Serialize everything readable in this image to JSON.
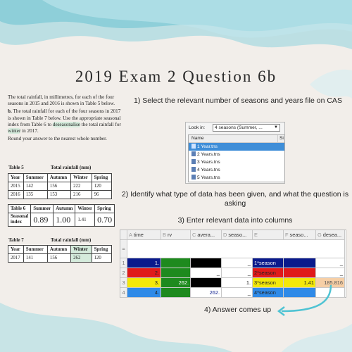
{
  "title": "2019 Exam 2 Question 6b",
  "question": {
    "intro": "The total rainfall, in millimetres, for each of the four seasons in 2015 and 2016 is shown in Table 5 below.",
    "part_label": "b.",
    "part_a": "The total rainfall for each of the four seasons in 2017 is shown in Table 7 below. Use the appropriate seasonal index from Table 6 to",
    "part_highlight_1": "deseasonalise",
    "part_b": "the total rainfall for",
    "part_highlight_2": "winter",
    "part_c": "in 2017.",
    "round_note": "Round your answer to the nearest whole number."
  },
  "table5": {
    "label": "Table 5",
    "caption": "Total rainfall (mm)",
    "headers": [
      "Year",
      "Summer",
      "Autumn",
      "Winter",
      "Spring"
    ],
    "rows": [
      [
        "2015",
        "142",
        "156",
        "222",
        "120"
      ],
      [
        "2016",
        "135",
        "153",
        "216",
        "96"
      ]
    ]
  },
  "table6": {
    "headers": [
      "Table 6",
      "Summer",
      "Autumn",
      "Winter",
      "Spring"
    ],
    "row_label": "Seasonal index",
    "values": [
      "0.89",
      "1.00",
      "1.41",
      "0.70"
    ]
  },
  "table7": {
    "label": "Table 7",
    "caption": "Total rainfall (mm)",
    "headers": [
      "Year",
      "Summer",
      "Autumn",
      "Winter",
      "Spring"
    ],
    "row": [
      "2017",
      "141",
      "156",
      "262",
      "120"
    ]
  },
  "steps": {
    "s1": "1) Select the relevant number of seasons and years file on CAS",
    "s2": "2) Identify what type of data has been given, and what the question is asking",
    "s3": "3) Enter relevant data into columns",
    "s4": "4) Answer comes up"
  },
  "file_dialog": {
    "look_in": "Look in:",
    "combo_value": "4 seasons (Summer, ...",
    "col_name": "Name",
    "col_size": "Si",
    "files": [
      "1 Year.tns",
      "2 Years.tns",
      "3 Years.tns",
      "4 Years.tns",
      "5 Years.tns"
    ]
  },
  "sheet": {
    "columns": [
      {
        "letter": "A",
        "name": "time"
      },
      {
        "letter": "B",
        "name": "rv"
      },
      {
        "letter": "C",
        "name": "avera..."
      },
      {
        "letter": "D",
        "name": "seaso..."
      },
      {
        "letter": "E",
        "name": ""
      },
      {
        "letter": "F",
        "name": "seaso..."
      },
      {
        "letter": "G",
        "name": "desea..."
      }
    ],
    "formula_row": "=",
    "row_numbers": [
      "1",
      "2",
      "3",
      "4"
    ],
    "rows": [
      [
        "1.",
        "",
        "",
        "_",
        "1*season",
        "",
        "_"
      ],
      [
        "2.",
        "",
        "_",
        "_",
        "2*season",
        "",
        "_"
      ],
      [
        "3.",
        "262.",
        "",
        "1.",
        "3*season",
        "1.41",
        "185.816"
      ],
      [
        "4.",
        "",
        "262.",
        "_",
        "4*season",
        "",
        ""
      ]
    ]
  },
  "colors": {
    "navy": "#0a1a8c",
    "red": "#e01a1a",
    "yellow": "#f3e80b",
    "blue": "#2f8ae8",
    "green": "#1e8a1e",
    "black": "#000000",
    "answer_highlight": "#f6cfa6",
    "accent_teal": "#4fc3d3"
  }
}
